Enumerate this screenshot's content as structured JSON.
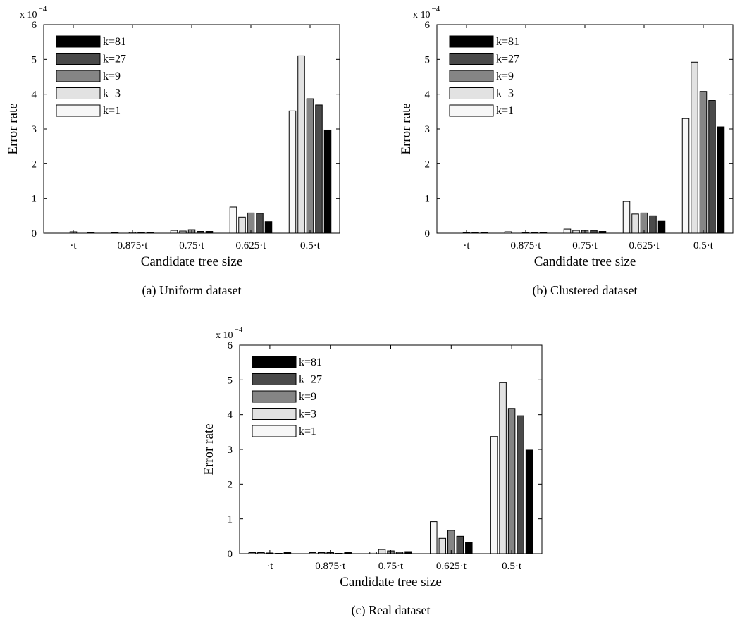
{
  "chart_data": [
    {
      "type": "bar",
      "caption": "(a) Uniform dataset",
      "xlabel": "Candidate tree size",
      "ylabel": "Error rate",
      "y_scale_base": "x 10",
      "y_scale_exponent": "−4",
      "categories": [
        "·t",
        "0.875·t",
        "0.75·t",
        "0.625·t",
        "0.5·t"
      ],
      "yticks": [
        "0",
        "1",
        "2",
        "3",
        "4",
        "5",
        "6"
      ],
      "ylim": [
        0,
        6
      ],
      "legend_position": "top-left",
      "series": [
        {
          "name": "k=1",
          "values": [
            0.0,
            0.02,
            0.08,
            0.75,
            3.52
          ]
        },
        {
          "name": "k=3",
          "values": [
            0.0,
            0.0,
            0.06,
            0.46,
            5.1
          ]
        },
        {
          "name": "k=9",
          "values": [
            0.04,
            0.03,
            0.1,
            0.58,
            3.87
          ]
        },
        {
          "name": "k=27",
          "values": [
            0.0,
            0.01,
            0.05,
            0.57,
            3.69
          ]
        },
        {
          "name": "k=81",
          "values": [
            0.03,
            0.03,
            0.05,
            0.33,
            2.97
          ]
        }
      ]
    },
    {
      "type": "bar",
      "caption": "(b) Clustered dataset",
      "xlabel": "Candidate tree size",
      "ylabel": "Error rate",
      "y_scale_base": "x 10",
      "y_scale_exponent": "−4",
      "categories": [
        "·t",
        "0.875·t",
        "0.75·t",
        "0.625·t",
        "0.5·t"
      ],
      "yticks": [
        "0",
        "1",
        "2",
        "3",
        "4",
        "5",
        "6"
      ],
      "ylim": [
        0,
        6
      ],
      "legend_position": "top-left",
      "series": [
        {
          "name": "k=1",
          "values": [
            0.0,
            0.04,
            0.12,
            0.91,
            3.3
          ]
        },
        {
          "name": "k=3",
          "values": [
            0.0,
            0.0,
            0.08,
            0.55,
            4.92
          ]
        },
        {
          "name": "k=9",
          "values": [
            0.02,
            0.02,
            0.08,
            0.58,
            4.08
          ]
        },
        {
          "name": "k=27",
          "values": [
            0.01,
            0.01,
            0.08,
            0.5,
            3.82
          ]
        },
        {
          "name": "k=81",
          "values": [
            0.02,
            0.02,
            0.05,
            0.34,
            3.06
          ]
        }
      ]
    },
    {
      "type": "bar",
      "caption": "(c) Real dataset",
      "xlabel": "Candidate tree size",
      "ylabel": "Error rate",
      "y_scale_base": "x 10",
      "y_scale_exponent": "−4",
      "categories": [
        "·t",
        "0.875·t",
        "0.75·t",
        "0.625·t",
        "0.5·t"
      ],
      "yticks": [
        "0",
        "1",
        "2",
        "3",
        "4",
        "5",
        "6"
      ],
      "ylim": [
        0,
        6
      ],
      "legend_position": "top-left",
      "series": [
        {
          "name": "k=1",
          "values": [
            0.03,
            0.03,
            0.05,
            0.92,
            3.37
          ]
        },
        {
          "name": "k=3",
          "values": [
            0.03,
            0.03,
            0.12,
            0.44,
            4.92
          ]
        },
        {
          "name": "k=9",
          "values": [
            0.02,
            0.03,
            0.08,
            0.67,
            4.18
          ]
        },
        {
          "name": "k=27",
          "values": [
            0.01,
            0.01,
            0.05,
            0.5,
            3.97
          ]
        },
        {
          "name": "k=81",
          "values": [
            0.03,
            0.03,
            0.06,
            0.32,
            2.98
          ]
        }
      ]
    }
  ],
  "series_colors": [
    "#f7f7f7",
    "#e2e2e2",
    "#858585",
    "#4a4a4a",
    "#000000"
  ],
  "legend_order": [
    "k=81",
    "k=27",
    "k=9",
    "k=3",
    "k=1"
  ]
}
